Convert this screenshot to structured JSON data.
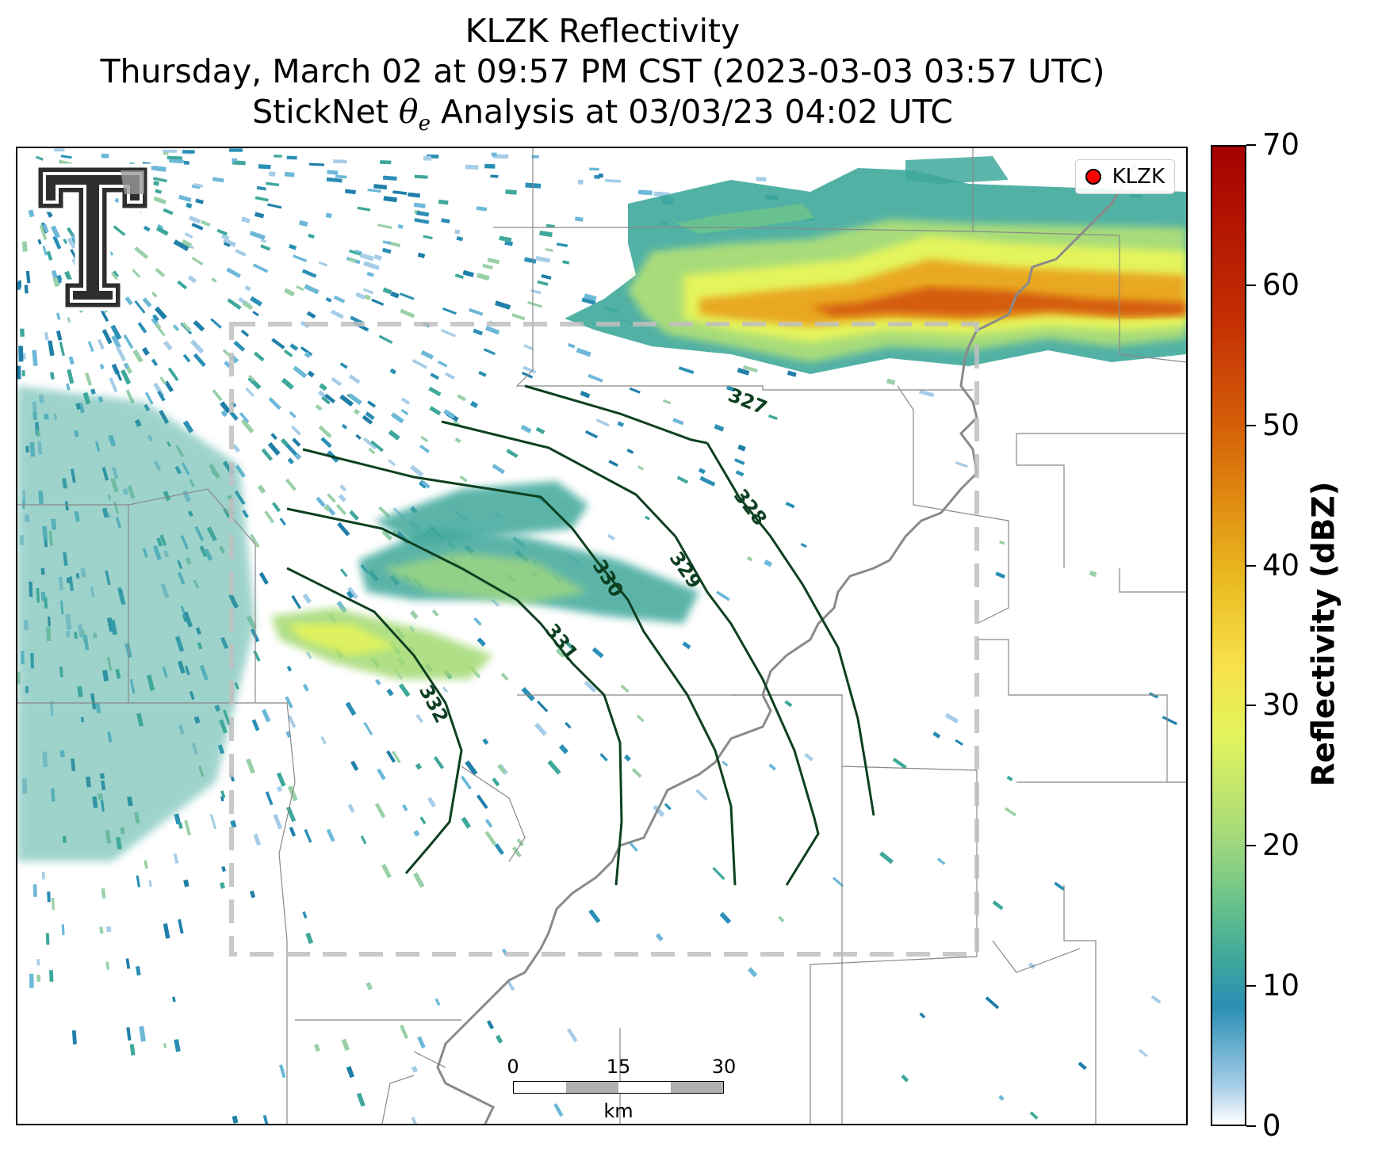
{
  "title": {
    "line1": "KLZK Reflectivity",
    "line2": "Thursday, March 02 at 09:57 PM CST (2023-03-03 03:57 UTC)",
    "line3_prefix": "StickNet ",
    "line3_theta": "θ",
    "line3_sub": "e",
    "line3_suffix": " Analysis at 03/03/23 04:02 UTC"
  },
  "legend": {
    "label": "KLZK",
    "marker_color": "#ff0000"
  },
  "logo": {
    "icon": "texas-tech-double-t-logo"
  },
  "contours": {
    "color": "#0d4020",
    "labels": [
      "327",
      "328",
      "329",
      "330",
      "331",
      "332"
    ]
  },
  "scalebar": {
    "ticks": [
      "0",
      "15",
      "30"
    ],
    "unit": "km"
  },
  "colorbar": {
    "title": "Reflectivity (dBZ)",
    "ticks": [
      "0",
      "10",
      "20",
      "30",
      "40",
      "50",
      "60",
      "70"
    ],
    "range": [
      0,
      70
    ]
  }
}
